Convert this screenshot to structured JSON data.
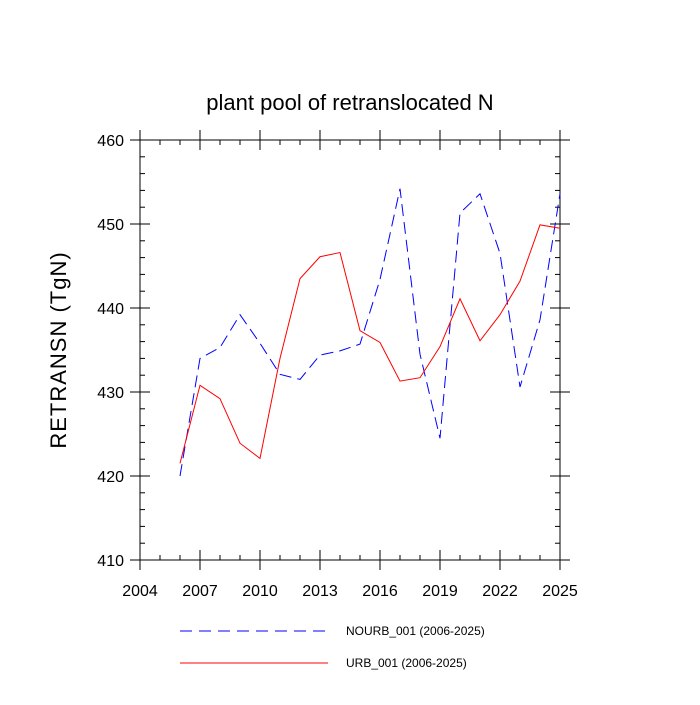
{
  "chart_data": {
    "type": "line",
    "title": "plant pool of retranslocated N",
    "xlabel": "",
    "ylabel": "RETRANSN  (TgN)",
    "xlim": [
      2004,
      2025
    ],
    "ylim": [
      410,
      460
    ],
    "xticks": [
      2004,
      2007,
      2010,
      2013,
      2016,
      2019,
      2022,
      2025
    ],
    "xtick_labels": [
      "2004",
      "2007",
      "2010",
      "2013",
      "2016",
      "2019",
      "2022",
      "2025"
    ],
    "yticks": [
      410,
      420,
      430,
      440,
      450,
      460
    ],
    "ytick_labels": [
      "410",
      "420",
      "430",
      "440",
      "450",
      "460"
    ],
    "x": [
      2006,
      2007,
      2008,
      2009,
      2010,
      2011,
      2012,
      2013,
      2014,
      2015,
      2016,
      2017,
      2018,
      2019,
      2020,
      2021,
      2022,
      2023,
      2024,
      2025
    ],
    "series": [
      {
        "name": "NOURB_001 (2006-2025)",
        "color": "#0000ff",
        "dash": "dashed",
        "values": [
          420.0,
          434.0,
          435.3,
          439.2,
          435.8,
          432.1,
          431.5,
          434.4,
          434.9,
          435.7,
          443.4,
          454.2,
          434.5,
          424.5,
          451.3,
          453.6,
          446.5,
          430.6,
          438.6,
          453.6
        ]
      },
      {
        "name": "URB_001 (2006-2025)",
        "color": "#ff0000",
        "dash": "solid",
        "values": [
          421.5,
          430.8,
          429.2,
          423.9,
          422.1,
          434.0,
          443.5,
          446.1,
          446.6,
          437.3,
          435.9,
          431.3,
          431.7,
          435.4,
          441.1,
          436.1,
          439.2,
          443.2,
          449.9,
          449.5
        ]
      }
    ],
    "grid": false,
    "legend_position": "bottom"
  }
}
